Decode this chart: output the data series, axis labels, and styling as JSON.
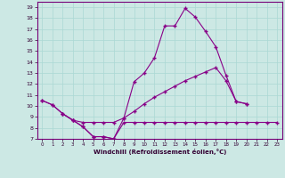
{
  "xlabel": "Windchill (Refroidissement éolien,°C)",
  "bg_color": "#cce8e4",
  "line_color": "#880088",
  "xlim": [
    -0.5,
    23.5
  ],
  "ylim": [
    7,
    19.5
  ],
  "yticks": [
    7,
    8,
    9,
    10,
    11,
    12,
    13,
    14,
    15,
    16,
    17,
    18,
    19
  ],
  "xticks": [
    0,
    1,
    2,
    3,
    4,
    5,
    6,
    7,
    8,
    9,
    10,
    11,
    12,
    13,
    14,
    15,
    16,
    17,
    18,
    19,
    20,
    21,
    22,
    23
  ],
  "series1_y": [
    10.5,
    10.1,
    null,
    null,
    null,
    null,
    null,
    null,
    null,
    null,
    13.0,
    14.4,
    17.3,
    17.3,
    18.9,
    18.1,
    16.8,
    null,
    null,
    null,
    null,
    null,
    null,
    null
  ],
  "series2_y": [
    10.5,
    10.1,
    9.3,
    8.7,
    8.1,
    7.2,
    7.2,
    7.0,
    8.9,
    12.2,
    13.0,
    14.4,
    17.3,
    17.3,
    18.9,
    18.1,
    16.8,
    15.4,
    12.8,
    10.4,
    10.2,
    null,
    null,
    null
  ],
  "series3_y": [
    10.5,
    10.1,
    9.3,
    8.7,
    8.5,
    8.5,
    8.5,
    8.5,
    8.9,
    9.5,
    10.2,
    10.8,
    11.3,
    11.8,
    12.3,
    12.7,
    13.1,
    13.5,
    12.3,
    10.4,
    10.2,
    null,
    null,
    null
  ],
  "series4_y": [
    null,
    null,
    9.3,
    8.7,
    8.1,
    7.2,
    7.2,
    7.0,
    8.5,
    8.5,
    8.5,
    8.5,
    8.5,
    8.5,
    8.5,
    8.5,
    8.5,
    8.5,
    8.5,
    8.5,
    8.5,
    8.5,
    8.5,
    8.5
  ]
}
